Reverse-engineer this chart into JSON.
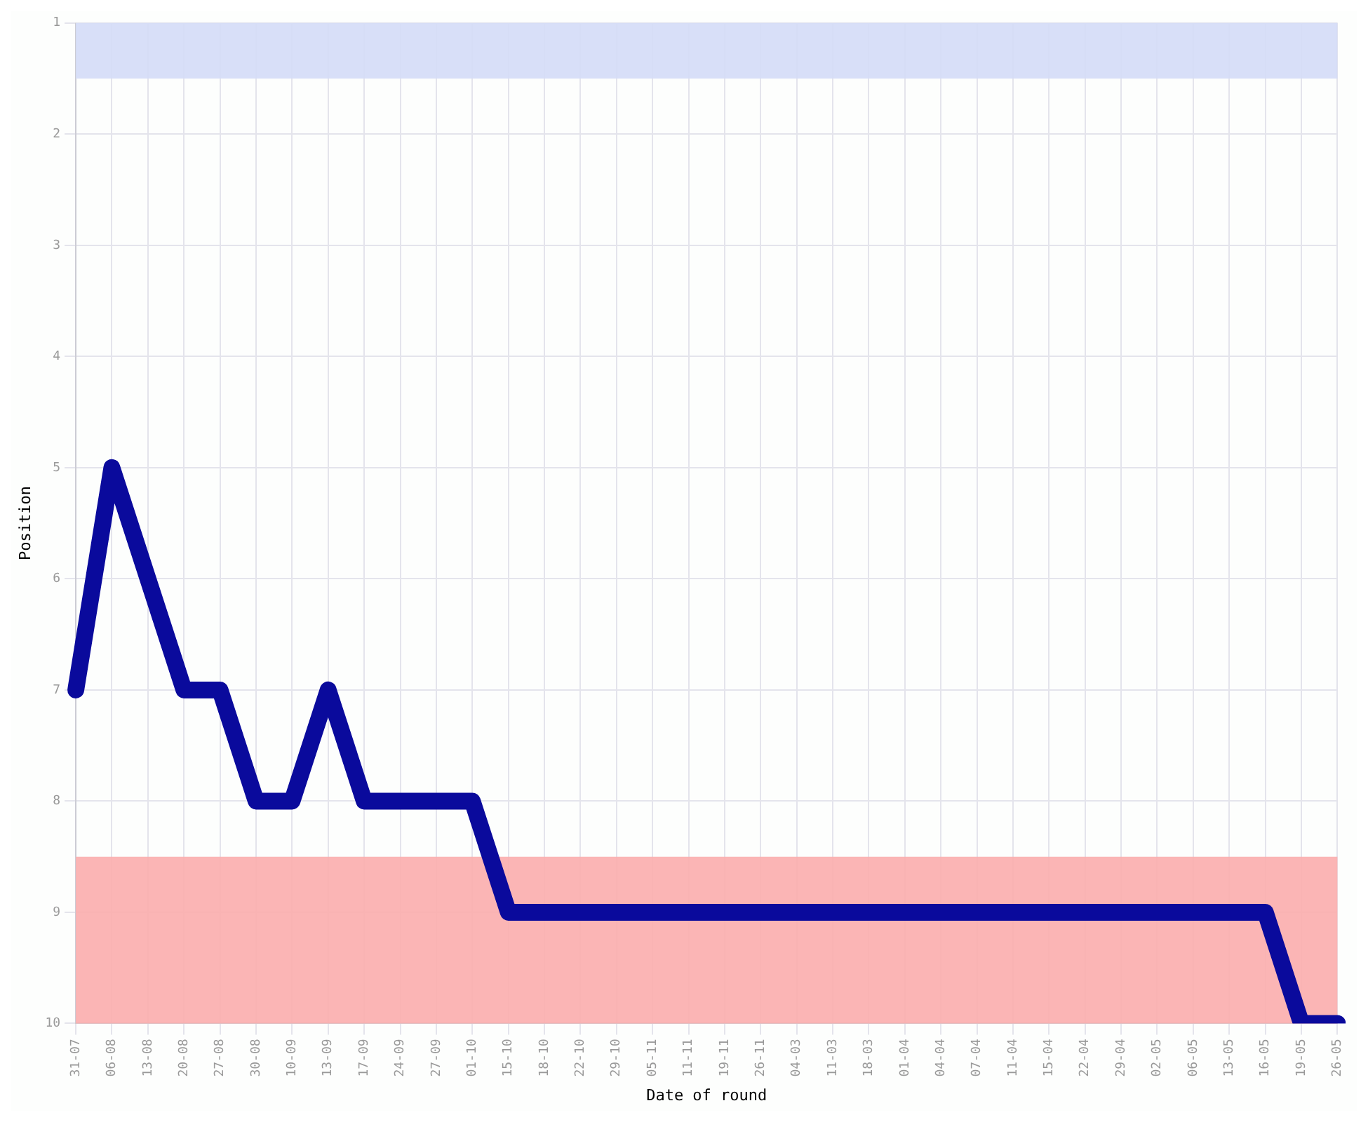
{
  "chart_data": {
    "type": "line",
    "xlabel": "Date of round",
    "ylabel": "Position",
    "categories": [
      "31-07",
      "06-08",
      "13-08",
      "20-08",
      "27-08",
      "30-08",
      "10-09",
      "13-09",
      "17-09",
      "24-09",
      "27-09",
      "01-10",
      "15-10",
      "18-10",
      "22-10",
      "29-10",
      "05-11",
      "11-11",
      "19-11",
      "26-11",
      "04-03",
      "11-03",
      "18-03",
      "01-04",
      "04-04",
      "07-04",
      "11-04",
      "15-04",
      "22-04",
      "29-04",
      "02-05",
      "06-05",
      "13-05",
      "16-05",
      "19-05",
      "26-05"
    ],
    "series": [
      {
        "color": "#0a0a9c",
        "values": [
          7,
          5,
          6,
          7,
          7,
          8,
          8,
          7,
          8,
          8,
          8,
          8,
          9,
          9,
          9,
          9,
          9,
          9,
          9,
          9,
          9,
          9,
          9,
          9,
          9,
          9,
          9,
          9,
          9,
          9,
          9,
          9,
          9,
          9,
          10,
          10
        ]
      }
    ],
    "ylim": [
      10,
      1
    ],
    "yticks": [
      1,
      2,
      3,
      4,
      5,
      6,
      7,
      8,
      9,
      10
    ],
    "bands": [
      {
        "axis": "y",
        "from": 1,
        "to": 1.5,
        "color": "#d4dcf7"
      },
      {
        "axis": "y",
        "from": 8.5,
        "to": 10,
        "color": "#fbadad"
      }
    ],
    "grid": true,
    "legend": false,
    "marker": "none",
    "line_style": "solid"
  }
}
